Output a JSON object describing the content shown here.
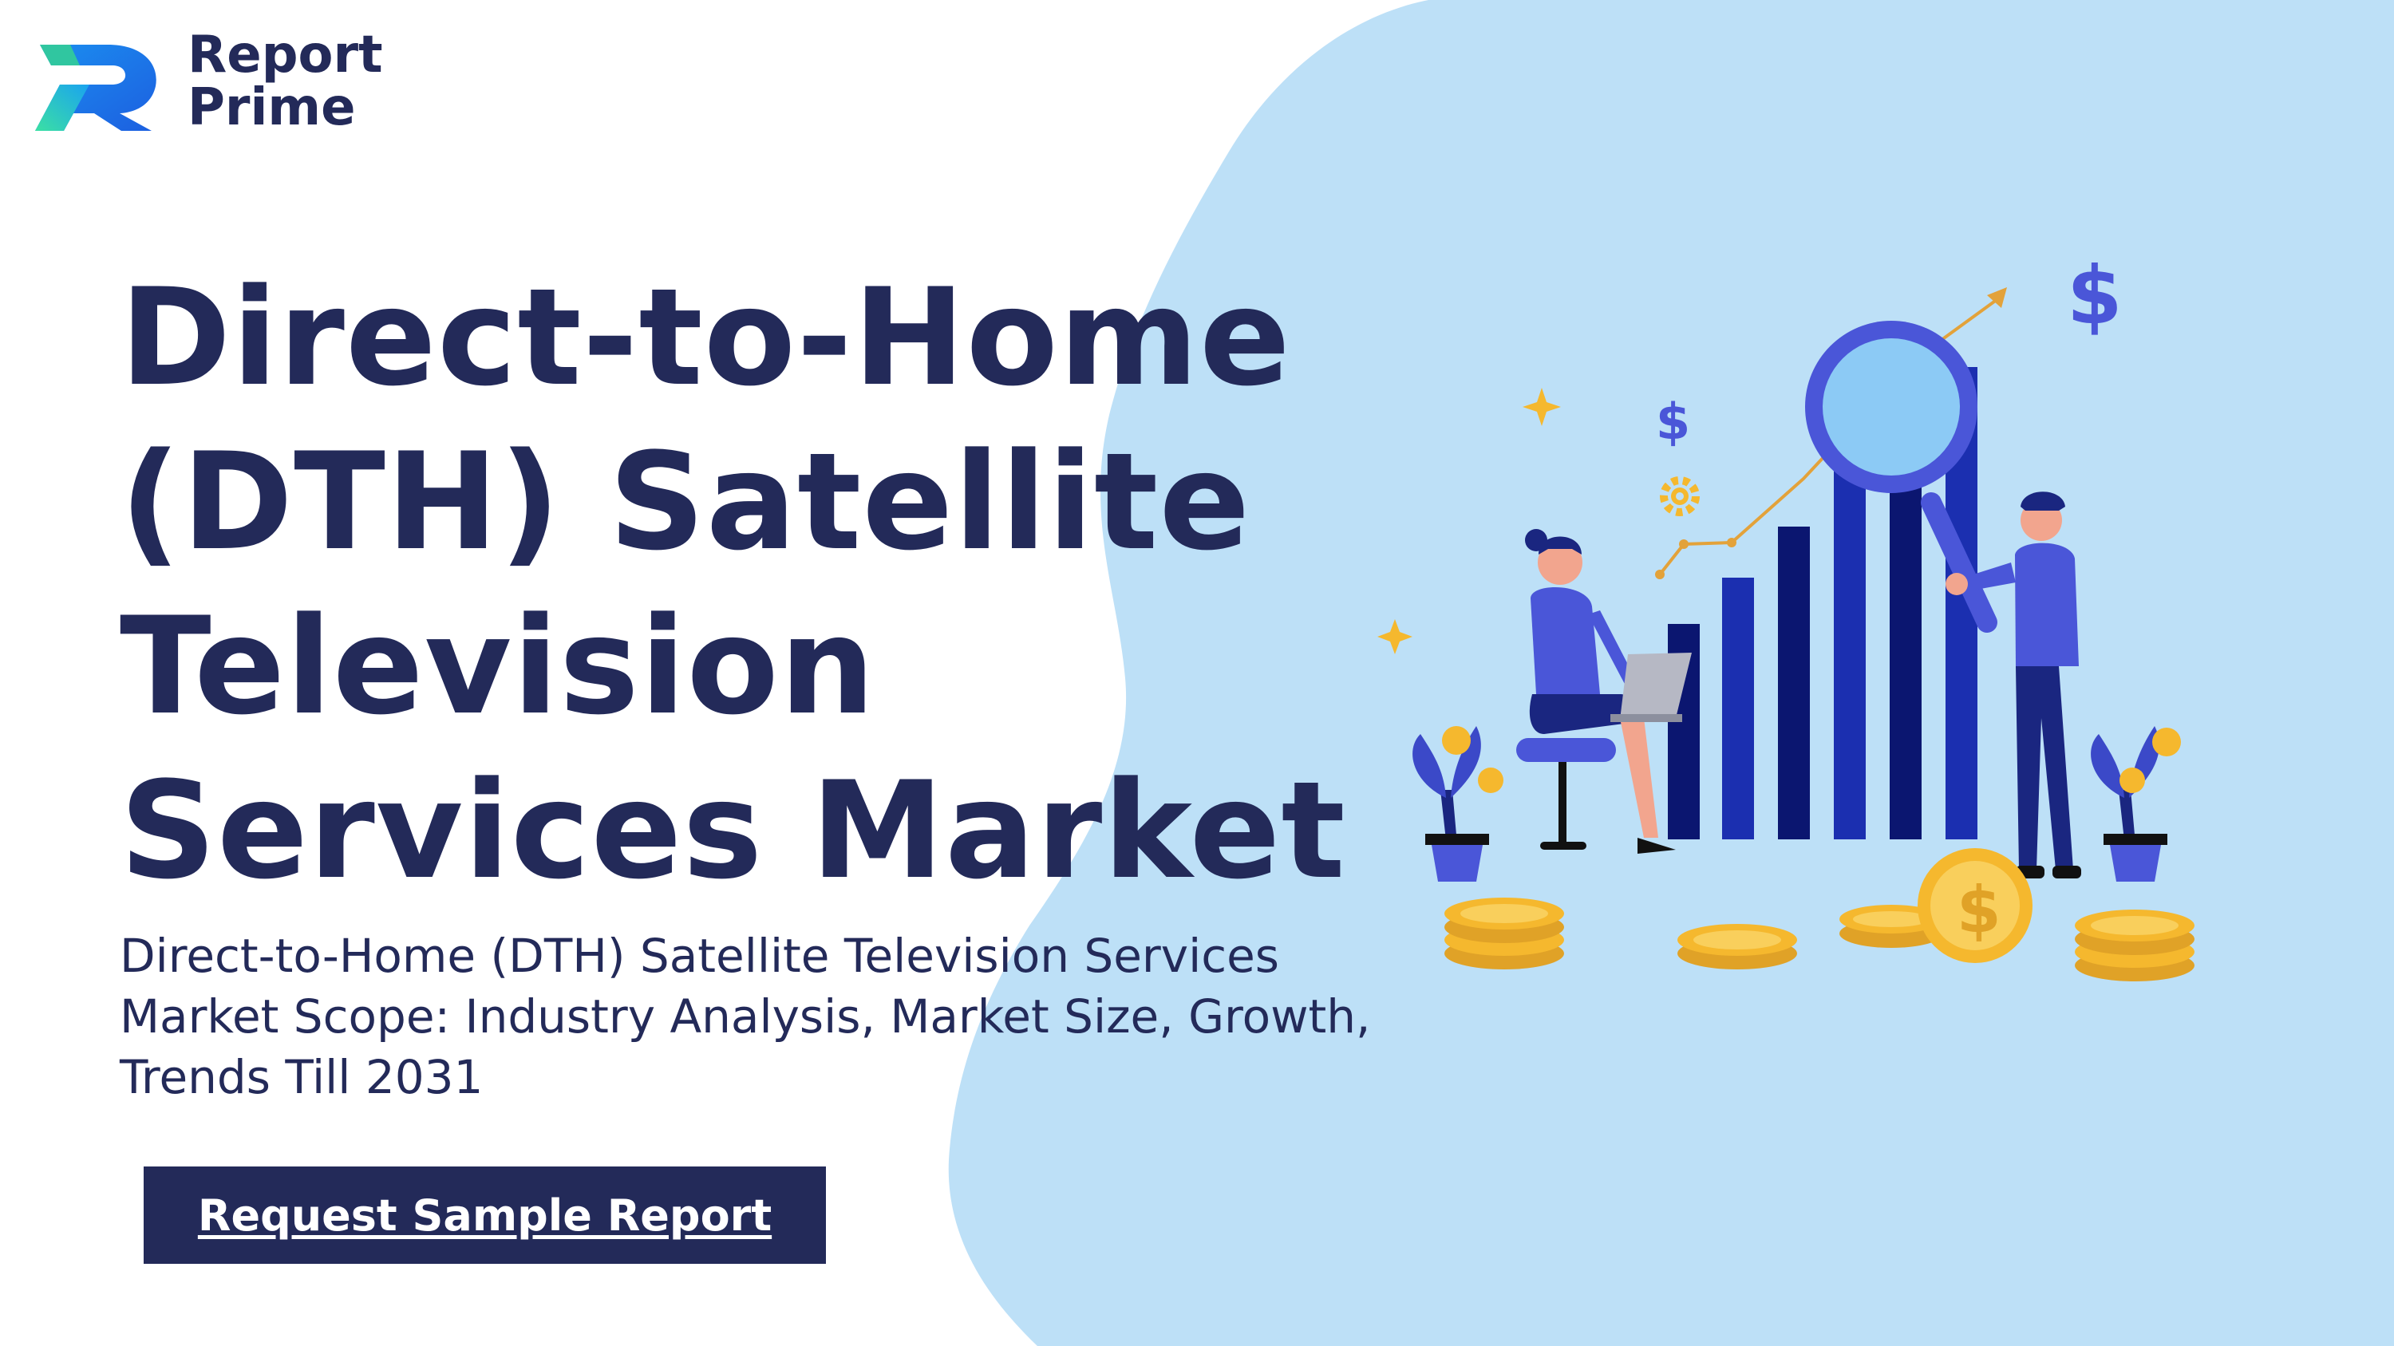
{
  "brand": {
    "name_line1": "Report",
    "name_line2": "Prime",
    "logo_icon": "report-prime-logo-icon"
  },
  "hero": {
    "title": "Direct-to-Home (DTH) Satellite Television Services Market",
    "subtitle": "Direct-to-Home (DTH) Satellite Television Services Market Scope: Industry Analysis, Market Size, Growth, Trends Till 2031",
    "cta_label": "Request Sample Report"
  },
  "colors": {
    "primary_navy": "#232a59",
    "blob_blue": "#bde0f7",
    "accent_blue": "#4a56d8",
    "dark_bar": "#0b1670",
    "coin_gold": "#f5b82e"
  },
  "illustration": {
    "icons": [
      "woman-with-laptop-icon",
      "man-with-magnifier-icon",
      "bar-chart-icon",
      "dollar-sign-icon",
      "gear-icon",
      "coin-stack-icon",
      "plant-pot-icon",
      "sparkle-icon",
      "growth-arrow-icon"
    ]
  }
}
